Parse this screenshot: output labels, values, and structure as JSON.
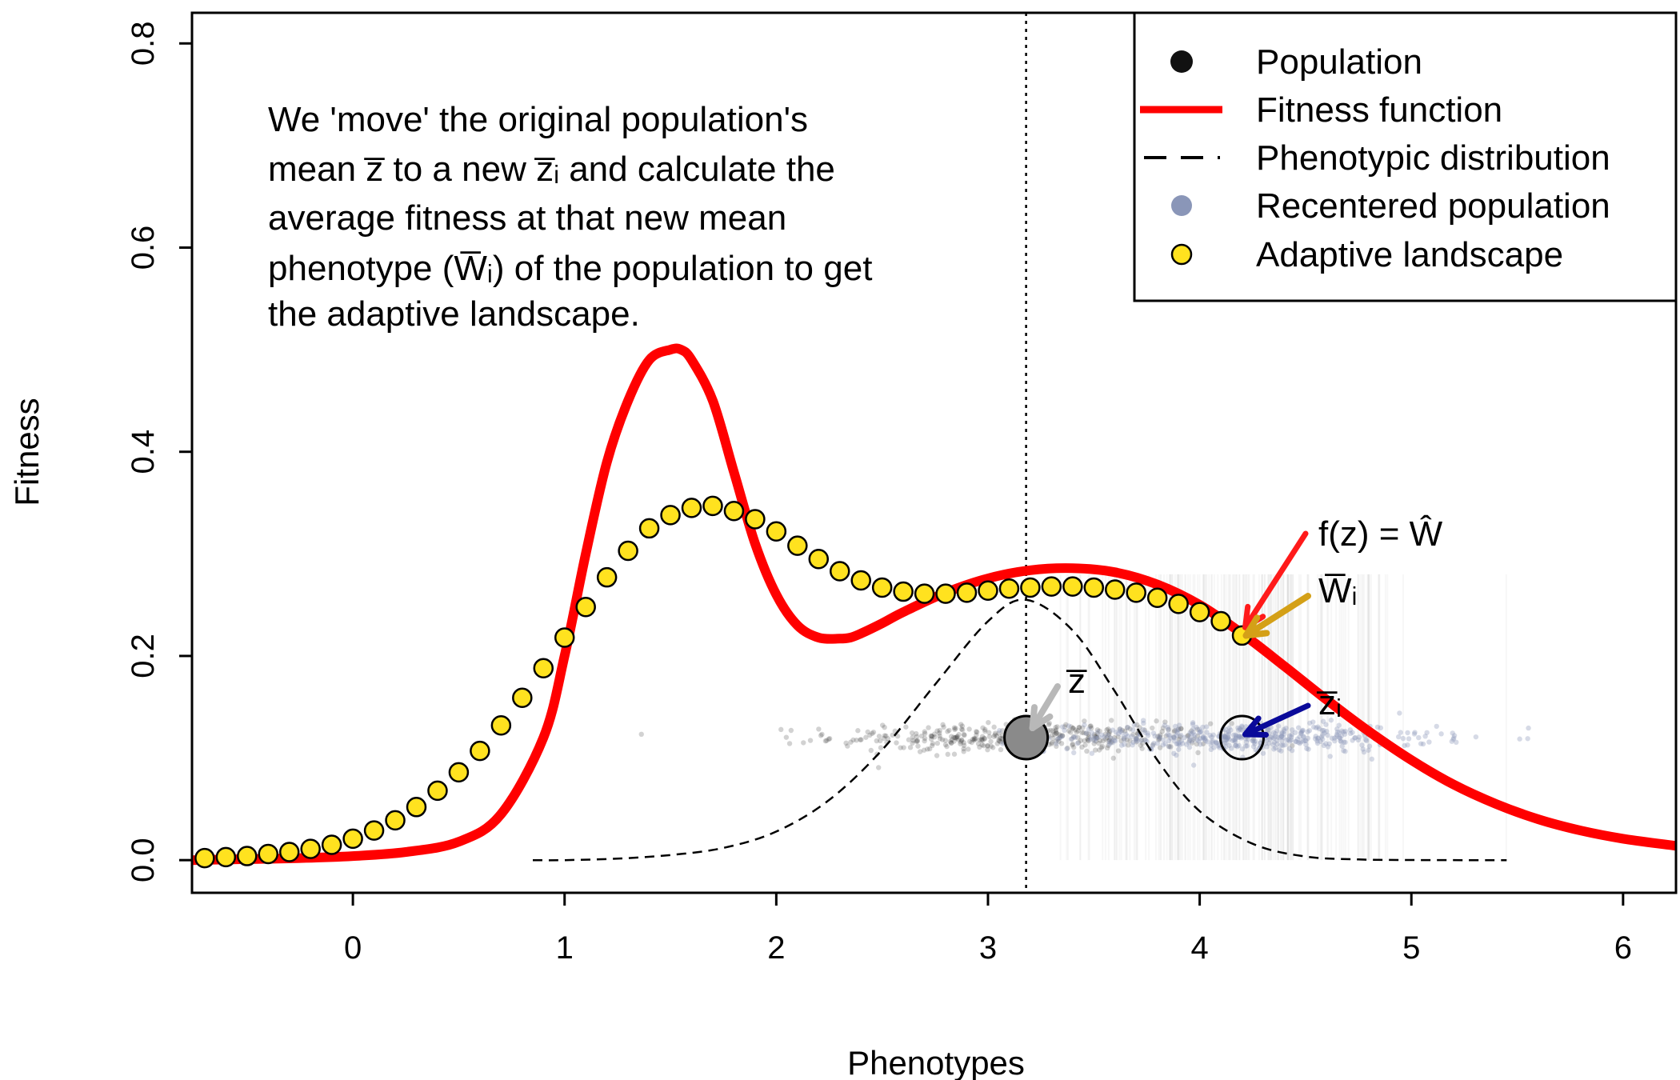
{
  "chart_data": {
    "type": "line",
    "title": "",
    "xlabel": "Phenotypes",
    "ylabel": "Fitness",
    "xlim": [
      -0.76,
      6.25
    ],
    "ylim": [
      -0.032,
      0.83
    ],
    "x_ticks": [
      "0",
      "1",
      "2",
      "3",
      "4",
      "5",
      "6"
    ],
    "y_ticks": [
      "0.0",
      "0.2",
      "0.4",
      "0.6",
      "0.8"
    ],
    "grid": false,
    "legend_position": "top-right",
    "legend": [
      {
        "label": "Population",
        "symbol": "filled-circle",
        "color": "#111111"
      },
      {
        "label": "Fitness function",
        "symbol": "solid-line",
        "color": "#ff0000"
      },
      {
        "label": "Phenotypic distribution",
        "symbol": "dashed-line",
        "color": "#000000"
      },
      {
        "label": "Recentered population",
        "symbol": "filled-circle",
        "color": "#8a96b8"
      },
      {
        "label": "Adaptive landscape",
        "symbol": "circle-outlined",
        "color": "#ffe21f"
      }
    ],
    "annotation_lines": [
      "We 'move' the original population's",
      "mean z̅ to a new z̅ᵢ and calculate the",
      "average fitness at that new mean",
      "phenotype (W̅ᵢ) of the population to get",
      "the adaptive landscape."
    ],
    "marker_labels": {
      "fitness_fn": "f(z) = Ŵ",
      "w_bar_i": "W̅ᵢ",
      "z_bar": "z̅",
      "z_bar_i": "z̅ᵢ"
    },
    "population_mean": 3.18,
    "recentered_mean": 4.2,
    "population_sd": 0.45,
    "points_y_level": 0.12,
    "fitness_function": {
      "x": [
        -0.76,
        -0.5,
        -0.25,
        0,
        0.25,
        0.5,
        0.7,
        0.9,
        1.0,
        1.1,
        1.2,
        1.3,
        1.4,
        1.5,
        1.55,
        1.6,
        1.7,
        1.8,
        1.9,
        2.0,
        2.1,
        2.2,
        2.3,
        2.35,
        2.4,
        2.5,
        2.6,
        2.8,
        3.0,
        3.2,
        3.4,
        3.6,
        3.8,
        4.0,
        4.2,
        4.4,
        4.6,
        4.8,
        5.0,
        5.2,
        5.4,
        5.6,
        5.8,
        6.0,
        6.25
      ],
      "y": [
        0.0,
        0.001,
        0.002,
        0.004,
        0.008,
        0.018,
        0.045,
        0.12,
        0.2,
        0.3,
        0.39,
        0.45,
        0.49,
        0.5,
        0.5,
        0.49,
        0.45,
        0.38,
        0.31,
        0.26,
        0.23,
        0.218,
        0.217,
        0.218,
        0.222,
        0.232,
        0.243,
        0.262,
        0.276,
        0.284,
        0.286,
        0.282,
        0.27,
        0.25,
        0.222,
        0.19,
        0.157,
        0.126,
        0.098,
        0.074,
        0.055,
        0.04,
        0.029,
        0.021,
        0.014
      ]
    },
    "phenotypic_distribution": {
      "x": [
        0.85,
        1.0,
        1.25,
        1.5,
        1.75,
        2.0,
        2.25,
        2.5,
        2.75,
        3.0,
        3.18,
        3.4,
        3.6,
        3.8,
        4.0,
        4.25,
        4.5,
        4.75,
        5.0,
        5.25,
        5.45
      ],
      "y": [
        0.0,
        0.0,
        0.0015,
        0.005,
        0.012,
        0.028,
        0.059,
        0.108,
        0.172,
        0.234,
        0.255,
        0.225,
        0.165,
        0.098,
        0.048,
        0.016,
        0.0035,
        0.0007,
        0.0001,
        0.0,
        0.0
      ]
    },
    "adaptive_landscape": {
      "x": [
        -0.7,
        -0.6,
        -0.5,
        -0.4,
        -0.3,
        -0.2,
        -0.1,
        0.0,
        0.1,
        0.2,
        0.3,
        0.4,
        0.5,
        0.6,
        0.7,
        0.8,
        0.9,
        1.0,
        1.1,
        1.2,
        1.3,
        1.4,
        1.5,
        1.6,
        1.7,
        1.8,
        1.9,
        2.0,
        2.1,
        2.2,
        2.3,
        2.4,
        2.5,
        2.6,
        2.7,
        2.8,
        2.9,
        3.0,
        3.1,
        3.2,
        3.3,
        3.4,
        3.5,
        3.6,
        3.7,
        3.8,
        3.9,
        4.0,
        4.1,
        4.2
      ],
      "y": [
        0.002,
        0.003,
        0.004,
        0.006,
        0.008,
        0.011,
        0.015,
        0.021,
        0.029,
        0.039,
        0.052,
        0.068,
        0.086,
        0.107,
        0.132,
        0.159,
        0.188,
        0.218,
        0.248,
        0.277,
        0.303,
        0.325,
        0.338,
        0.345,
        0.347,
        0.342,
        0.334,
        0.322,
        0.308,
        0.295,
        0.283,
        0.274,
        0.267,
        0.263,
        0.261,
        0.261,
        0.262,
        0.264,
        0.266,
        0.267,
        0.268,
        0.268,
        0.267,
        0.265,
        0.262,
        0.257,
        0.251,
        0.243,
        0.234,
        0.22
      ]
    },
    "colors": {
      "fitness": "#ff0000",
      "landscape_fill": "#ffe21f",
      "recentered": "#8a96b8",
      "population": "#333333",
      "arrow_fitness": "#ff1a1a",
      "arrow_w": "#d4a017",
      "arrow_zbar": "#b8b8b8",
      "arrow_zi": "#0a0a9a"
    }
  }
}
